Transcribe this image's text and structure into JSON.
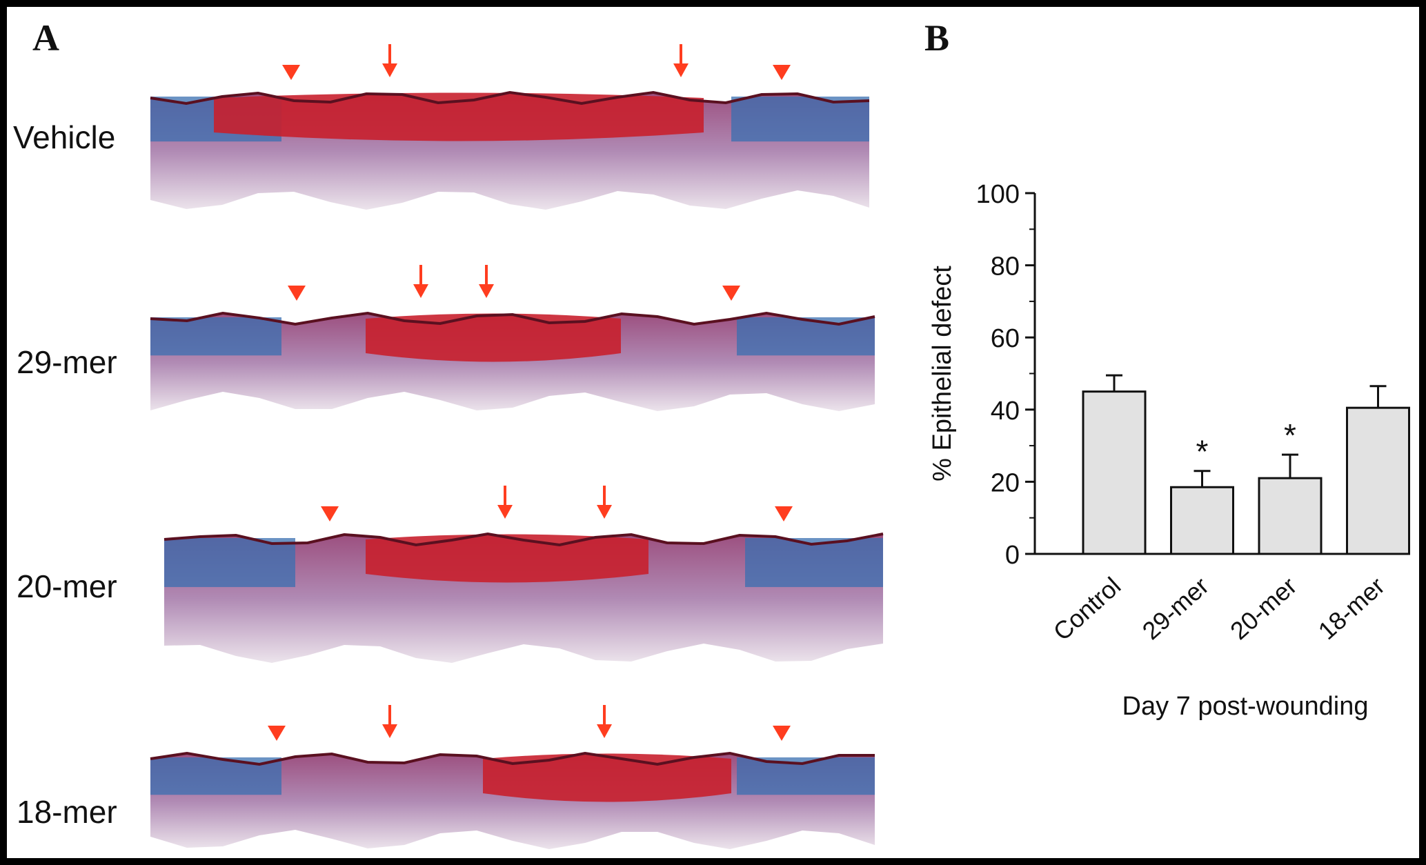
{
  "panels": {
    "a_label": "A",
    "b_label": "B"
  },
  "histology": {
    "rows": [
      {
        "label": "Vehicle"
      },
      {
        "label": "29-mer"
      },
      {
        "label": "20-mer"
      },
      {
        "label": "18-mer"
      }
    ],
    "marker_color": "#ff3d1f",
    "stain_colors": {
      "red": "#c8202e",
      "blue": "#3a6fb0",
      "purple": "#7a4a8a",
      "pale": "#e8dde8"
    }
  },
  "chart_data": {
    "type": "bar",
    "categories": [
      "Control",
      "29-mer",
      "20-mer",
      "18-mer"
    ],
    "values": [
      45,
      18.5,
      21,
      40.5
    ],
    "errors": [
      4.5,
      4.5,
      6.5,
      6
    ],
    "significant": [
      false,
      true,
      true,
      false
    ],
    "significance_marker": "*",
    "ylabel": "% Epithelial defect",
    "xlabel": "Day 7 post-wounding",
    "ylim": [
      0,
      100
    ],
    "yticks": [
      0,
      20,
      40,
      60,
      80,
      100
    ],
    "bar_color": "#e2e2e2",
    "edge_color": "#111111"
  }
}
